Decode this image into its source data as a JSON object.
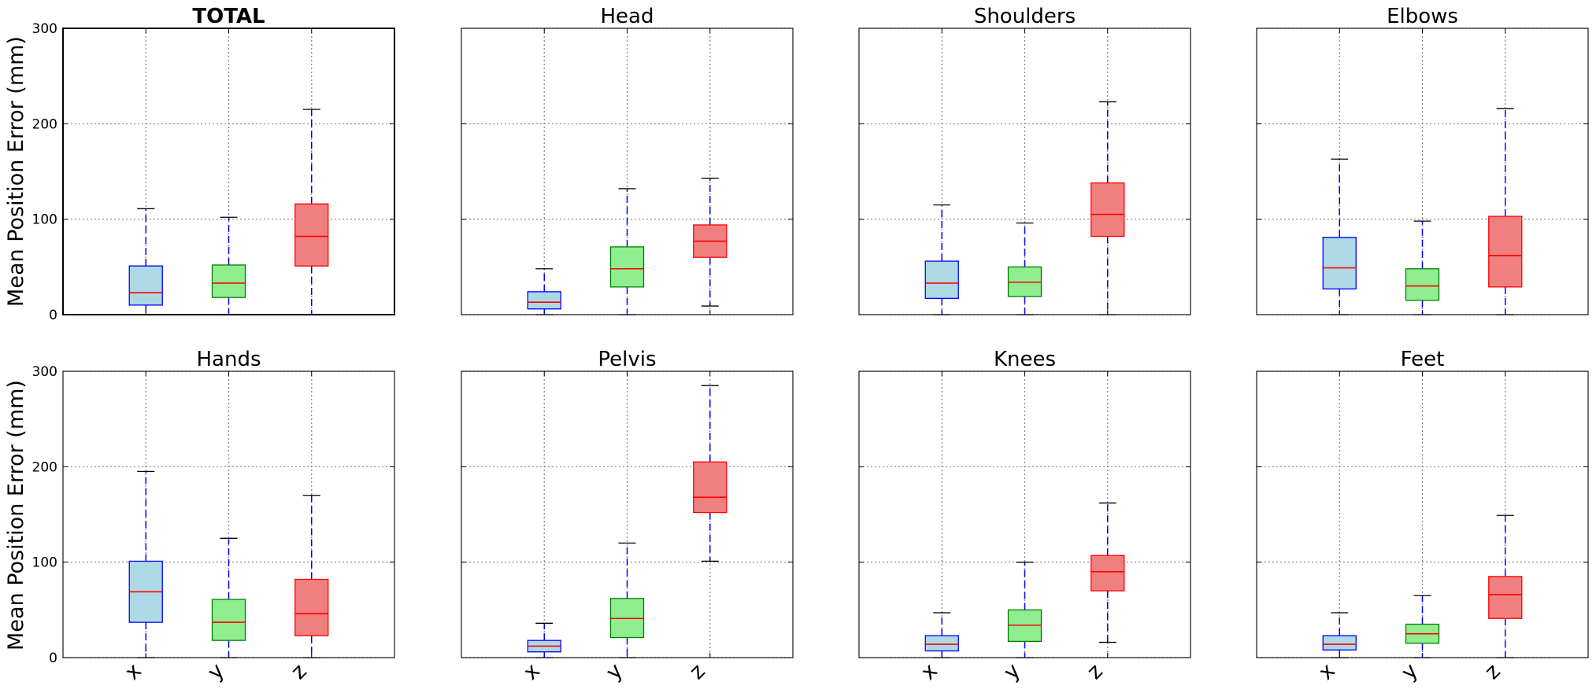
{
  "ylabel": "Mean Position Error (mm)",
  "colors": {
    "x": "#add8e6",
    "y": "#90ee90",
    "z": "#f08080",
    "x_edge": "#0000ff",
    "y_edge": "#008000",
    "z_edge": "#ff0000",
    "median": "#ff0000",
    "whisker": "#0000ff"
  },
  "chart_data": [
    {
      "type": "boxplot",
      "title": "TOTAL",
      "title_bold": true,
      "categories": [
        "x",
        "y",
        "z"
      ],
      "ylim": [
        0,
        300
      ],
      "yticks": [
        0,
        100,
        200,
        300
      ],
      "grid": true,
      "boxes": [
        {
          "category": "x",
          "whislo": 0,
          "q1": 10,
          "med": 23,
          "q3": 51,
          "whishi": 111
        },
        {
          "category": "y",
          "whislo": 0,
          "q1": 18,
          "med": 33,
          "q3": 52,
          "whishi": 102
        },
        {
          "category": "z",
          "whislo": 0,
          "q1": 51,
          "med": 82,
          "q3": 116,
          "whishi": 215
        }
      ]
    },
    {
      "type": "boxplot",
      "title": "Head",
      "categories": [
        "x",
        "y",
        "z"
      ],
      "ylim": [
        0,
        300
      ],
      "yticks": [
        0,
        100,
        200,
        300
      ],
      "grid": true,
      "boxes": [
        {
          "category": "x",
          "whislo": 0,
          "q1": 6,
          "med": 13,
          "q3": 24,
          "whishi": 48
        },
        {
          "category": "y",
          "whislo": 0,
          "q1": 29,
          "med": 48,
          "q3": 71,
          "whishi": 132
        },
        {
          "category": "z",
          "whislo": 9,
          "q1": 60,
          "med": 77,
          "q3": 94,
          "whishi": 143
        }
      ]
    },
    {
      "type": "boxplot",
      "title": "Shoulders",
      "categories": [
        "x",
        "y",
        "z"
      ],
      "ylim": [
        0,
        300
      ],
      "yticks": [
        0,
        100,
        200,
        300
      ],
      "grid": true,
      "boxes": [
        {
          "category": "x",
          "whislo": 0,
          "q1": 17,
          "med": 33,
          "q3": 56,
          "whishi": 115
        },
        {
          "category": "y",
          "whislo": 0,
          "q1": 19,
          "med": 34,
          "q3": 50,
          "whishi": 96
        },
        {
          "category": "z",
          "whislo": 0,
          "q1": 82,
          "med": 105,
          "q3": 138,
          "whishi": 223
        }
      ]
    },
    {
      "type": "boxplot",
      "title": "Elbows",
      "categories": [
        "x",
        "y",
        "z"
      ],
      "ylim": [
        0,
        300
      ],
      "yticks": [
        0,
        100,
        200,
        300
      ],
      "grid": true,
      "boxes": [
        {
          "category": "x",
          "whislo": 0,
          "q1": 27,
          "med": 49,
          "q3": 81,
          "whishi": 163
        },
        {
          "category": "y",
          "whislo": 0,
          "q1": 15,
          "med": 30,
          "q3": 48,
          "whishi": 98
        },
        {
          "category": "z",
          "whislo": 0,
          "q1": 29,
          "med": 62,
          "q3": 103,
          "whishi": 216
        }
      ]
    },
    {
      "type": "boxplot",
      "title": "Hands",
      "categories": [
        "x",
        "y",
        "z"
      ],
      "ylim": [
        0,
        300
      ],
      "yticks": [
        0,
        100,
        200,
        300
      ],
      "grid": true,
      "boxes": [
        {
          "category": "x",
          "whislo": 0,
          "q1": 37,
          "med": 69,
          "q3": 101,
          "whishi": 195
        },
        {
          "category": "y",
          "whislo": 0,
          "q1": 18,
          "med": 37,
          "q3": 61,
          "whishi": 125
        },
        {
          "category": "z",
          "whislo": 0,
          "q1": 23,
          "med": 46,
          "q3": 82,
          "whishi": 170
        }
      ]
    },
    {
      "type": "boxplot",
      "title": "Pelvis",
      "categories": [
        "x",
        "y",
        "z"
      ],
      "ylim": [
        0,
        300
      ],
      "yticks": [
        0,
        100,
        200,
        300
      ],
      "grid": true,
      "boxes": [
        {
          "category": "x",
          "whislo": 0,
          "q1": 6,
          "med": 12,
          "q3": 18,
          "whishi": 36
        },
        {
          "category": "y",
          "whislo": 0,
          "q1": 21,
          "med": 41,
          "q3": 62,
          "whishi": 120
        },
        {
          "category": "z",
          "whislo": 101,
          "q1": 152,
          "med": 168,
          "q3": 205,
          "whishi": 285
        }
      ]
    },
    {
      "type": "boxplot",
      "title": "Knees",
      "categories": [
        "x",
        "y",
        "z"
      ],
      "ylim": [
        0,
        300
      ],
      "yticks": [
        0,
        100,
        200,
        300
      ],
      "grid": true,
      "boxes": [
        {
          "category": "x",
          "whislo": 0,
          "q1": 7,
          "med": 14,
          "q3": 23,
          "whishi": 47
        },
        {
          "category": "y",
          "whislo": 0,
          "q1": 17,
          "med": 34,
          "q3": 50,
          "whishi": 100
        },
        {
          "category": "z",
          "whislo": 16,
          "q1": 70,
          "med": 90,
          "q3": 107,
          "whishi": 162
        }
      ]
    },
    {
      "type": "boxplot",
      "title": "Feet",
      "categories": [
        "x",
        "y",
        "z"
      ],
      "ylim": [
        0,
        300
      ],
      "yticks": [
        0,
        100,
        200,
        300
      ],
      "grid": true,
      "boxes": [
        {
          "category": "x",
          "whislo": 0,
          "q1": 8,
          "med": 14,
          "q3": 23,
          "whishi": 47
        },
        {
          "category": "y",
          "whislo": 0,
          "q1": 15,
          "med": 25,
          "q3": 35,
          "whishi": 65
        },
        {
          "category": "z",
          "whislo": 0,
          "q1": 41,
          "med": 66,
          "q3": 85,
          "whishi": 149
        }
      ]
    }
  ]
}
